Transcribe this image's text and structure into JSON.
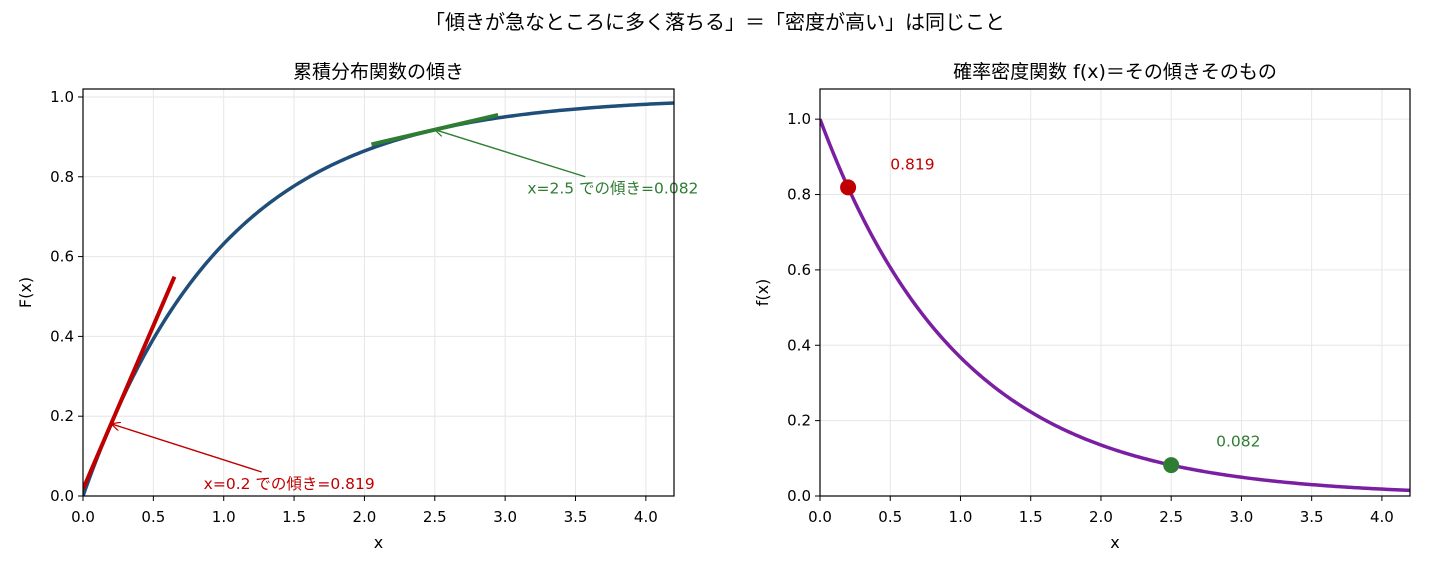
{
  "suptitle": "「傾きが急なところに多く落ちる」＝「密度が高い」は同じこと",
  "colors": {
    "cdf_line": "#1f4e79",
    "pdf_line": "#7b1fa2",
    "red": "#c00000",
    "green": "#2e7d32",
    "grid": "#e6e6e6"
  },
  "chart_data": [
    {
      "type": "line",
      "title": "累積分布関数の傾き",
      "xlabel": "x",
      "ylabel": "F(x)",
      "xlim": [
        0,
        4.2
      ],
      "ylim": [
        0,
        1.02
      ],
      "xticks": [
        "0.0",
        "0.5",
        "1.0",
        "1.5",
        "2.0",
        "2.5",
        "3.0",
        "3.5",
        "4.0"
      ],
      "yticks": [
        "0.0",
        "0.2",
        "0.4",
        "0.6",
        "0.8",
        "1.0"
      ],
      "grid": true,
      "series": [
        {
          "function": "1 - exp(-x)",
          "x": [
            0,
            0.1,
            0.2,
            0.3,
            0.4,
            0.5,
            0.6,
            0.7,
            0.8,
            0.9,
            1.0,
            1.2,
            1.4,
            1.6,
            1.8,
            2.0,
            2.2,
            2.4,
            2.6,
            2.8,
            3.0,
            3.2,
            3.4,
            3.6,
            3.8,
            4.0,
            4.2
          ],
          "y": [
            0,
            0.095,
            0.181,
            0.259,
            0.33,
            0.393,
            0.451,
            0.503,
            0.551,
            0.593,
            0.632,
            0.699,
            0.753,
            0.798,
            0.835,
            0.865,
            0.889,
            0.909,
            0.926,
            0.939,
            0.95,
            0.959,
            0.967,
            0.973,
            0.978,
            0.982,
            0.985
          ]
        }
      ],
      "tangents": [
        {
          "x0": 0.2,
          "y0": 0.181,
          "slope": 0.819,
          "x_from": 0.0,
          "x_to": 0.65,
          "color": "red"
        },
        {
          "x0": 2.5,
          "y0": 0.918,
          "slope": 0.082,
          "x_from": 2.05,
          "x_to": 2.95,
          "color": "green"
        }
      ],
      "annotations": [
        {
          "text": "x=0.2 での傾き=0.819",
          "point": [
            0.2,
            0.181
          ],
          "text_pos": [
            0.95,
            0.02
          ],
          "color": "red"
        },
        {
          "text": "x=2.5 での傾き=0.082",
          "point": [
            2.5,
            0.918
          ],
          "text_pos": [
            3.25,
            0.76
          ],
          "color": "green"
        }
      ]
    },
    {
      "type": "line",
      "title": "確率密度関数 f(x)＝その傾きそのもの",
      "xlabel": "x",
      "ylabel": "f(x)",
      "xlim": [
        0,
        4.2
      ],
      "ylim": [
        0,
        1.08
      ],
      "xticks": [
        "0.0",
        "0.5",
        "1.0",
        "1.5",
        "2.0",
        "2.5",
        "3.0",
        "3.5",
        "4.0"
      ],
      "yticks": [
        "0.0",
        "0.2",
        "0.4",
        "0.6",
        "0.8",
        "1.0"
      ],
      "grid": true,
      "series": [
        {
          "function": "exp(-x)",
          "x": [
            0,
            0.1,
            0.2,
            0.3,
            0.4,
            0.5,
            0.6,
            0.7,
            0.8,
            0.9,
            1.0,
            1.2,
            1.4,
            1.6,
            1.8,
            2.0,
            2.2,
            2.4,
            2.6,
            2.8,
            3.0,
            3.2,
            3.4,
            3.6,
            3.8,
            4.0,
            4.2
          ],
          "y": [
            1.0,
            0.905,
            0.819,
            0.741,
            0.67,
            0.607,
            0.549,
            0.497,
            0.449,
            0.407,
            0.368,
            0.301,
            0.247,
            0.202,
            0.165,
            0.135,
            0.111,
            0.091,
            0.074,
            0.061,
            0.05,
            0.041,
            0.033,
            0.027,
            0.022,
            0.018,
            0.015
          ]
        }
      ],
      "points": [
        {
          "x": 0.2,
          "y": 0.819,
          "label": "0.819",
          "label_pos": [
            0.5,
            0.88
          ],
          "color": "red"
        },
        {
          "x": 2.5,
          "y": 0.082,
          "label": "0.082",
          "label_pos": [
            2.82,
            0.145
          ],
          "color": "green"
        }
      ]
    }
  ]
}
